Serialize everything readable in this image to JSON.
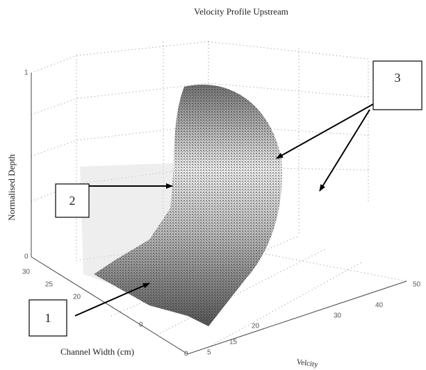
{
  "title": "Velocity Profile Upstream",
  "axes": {
    "z_label": "Normalised Depth",
    "x_label": "Channel Width (cm)",
    "y_label": "Velcity",
    "z_ticks": [
      "1",
      "0"
    ],
    "x_ticks": [
      "30",
      "25",
      "20",
      "0",
      "0"
    ],
    "y_ticks": [
      "5",
      "15",
      "20",
      "30",
      "40",
      "50"
    ]
  },
  "annotations": [
    "1",
    "2",
    "3"
  ]
}
